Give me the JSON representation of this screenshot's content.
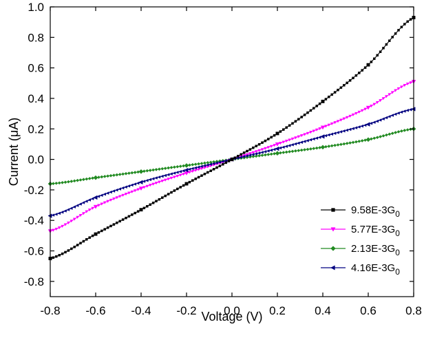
{
  "chart_data": {
    "type": "line",
    "title": "",
    "xlabel": "Voltage (V)",
    "ylabel": "Current (μA)",
    "xlim": [
      -0.8,
      0.8
    ],
    "ylim": [
      -0.9,
      1.0
    ],
    "x_ticks": [
      -0.8,
      -0.6,
      -0.4,
      -0.2,
      0.0,
      0.2,
      0.4,
      0.6,
      0.8
    ],
    "x_tick_labels": [
      "-0.8",
      "-0.6",
      "-0.4",
      "-0.2",
      "0.0",
      "0.2",
      "0.4",
      "0.6",
      "0.8"
    ],
    "y_ticks": [
      -0.8,
      -0.6,
      -0.4,
      -0.2,
      0.0,
      0.2,
      0.4,
      0.6,
      0.8,
      1.0
    ],
    "y_tick_labels": [
      "-0.8",
      "-0.6",
      "-0.4",
      "-0.2",
      "0.0",
      "0.2",
      "0.4",
      "0.6",
      "0.8",
      "1.0"
    ],
    "grid": false,
    "legend_position": "bottom-right",
    "x": [
      -0.8,
      -0.6,
      -0.4,
      -0.2,
      0.0,
      0.2,
      0.4,
      0.6,
      0.8
    ],
    "series": [
      {
        "name": "9.58E-3G",
        "name_sub": "0",
        "color": "#000000",
        "marker": "square",
        "values": [
          -0.65,
          -0.49,
          -0.33,
          -0.16,
          0.0,
          0.17,
          0.38,
          0.62,
          0.93
        ]
      },
      {
        "name": "5.77E-3G",
        "name_sub": "0",
        "color": "#ff00ff",
        "marker": "triangle-down",
        "values": [
          -0.47,
          -0.31,
          -0.19,
          -0.09,
          0.0,
          0.1,
          0.21,
          0.34,
          0.51
        ]
      },
      {
        "name": "2.13E-3G",
        "name_sub": "0",
        "color": "#228b22",
        "marker": "diamond",
        "values": [
          -0.16,
          -0.12,
          -0.08,
          -0.04,
          0.0,
          0.04,
          0.08,
          0.13,
          0.2
        ]
      },
      {
        "name": "4.16E-3G",
        "name_sub": "0",
        "color": "#000080",
        "marker": "triangle-left",
        "values": [
          -0.37,
          -0.25,
          -0.15,
          -0.07,
          0.0,
          0.07,
          0.15,
          0.23,
          0.33
        ]
      }
    ]
  }
}
